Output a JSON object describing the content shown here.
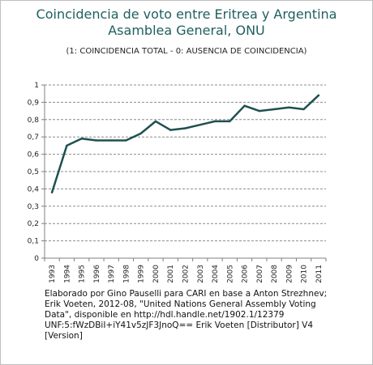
{
  "title_line1": "Coincidencia de voto entre Eritrea y Argentina",
  "title_line2": "Asamblea General, ONU",
  "subtitle": "(1: COINCIDENCIA TOTAL  -  0: AUSENCIA DE COINCIDENCIA)",
  "source_lines": [
    "Elaborado por Gino Pauselli para CARI en base a Anton Strezhnev;",
    "Erik Voeten, 2012-08, \"United Nations General Assembly Voting",
    "Data\", disponible en http://hdl.handle.net/1902.1/12379",
    "UNF:5:fWzDBiI+iY41v5zJF3JnoQ== Erik Voeten [Distributor] V4",
    "[Version]"
  ],
  "line_color": "#1f5050",
  "chart_data": {
    "type": "line",
    "categories": [
      "1993",
      "1994",
      "1995",
      "1996",
      "1997",
      "1998",
      "1999",
      "2000",
      "2001",
      "2002",
      "2003",
      "2004",
      "2005",
      "2006",
      "2007",
      "2008",
      "2009",
      "2010",
      "2011"
    ],
    "values": [
      0.38,
      0.65,
      0.69,
      0.68,
      0.68,
      0.68,
      0.72,
      0.79,
      0.74,
      0.75,
      0.77,
      0.79,
      0.79,
      0.88,
      0.85,
      0.86,
      0.87,
      0.86,
      0.94
    ],
    "y_ticks": [
      "0",
      "0,1",
      "0,2",
      "0,3",
      "0,4",
      "0,5",
      "0,6",
      "0,7",
      "0,8",
      "0,9",
      "1"
    ],
    "ylim": [
      0,
      1
    ],
    "grid": true,
    "legend": "none"
  }
}
